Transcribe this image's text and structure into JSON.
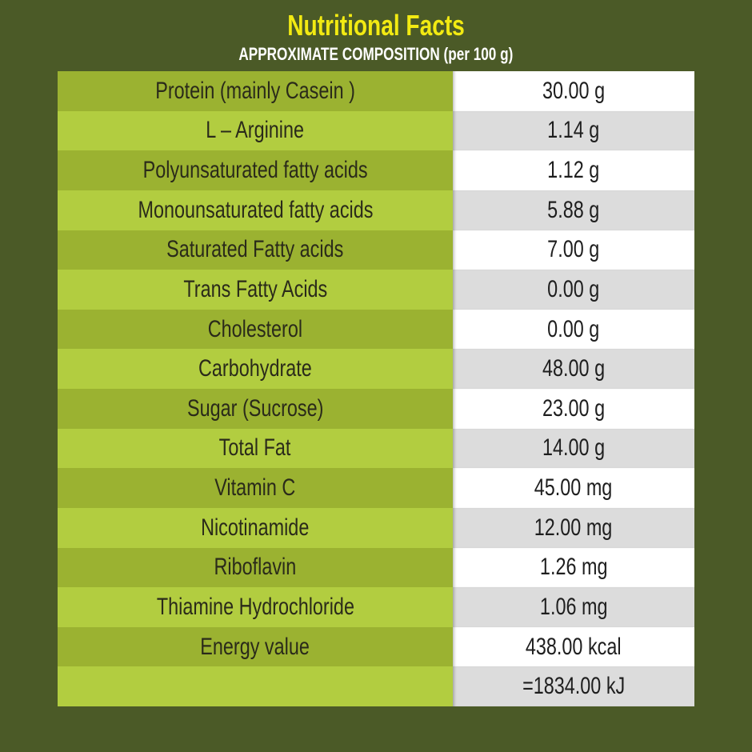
{
  "title": "Nutritional Facts",
  "subtitle": "APPROXIMATE COMPOSITION (per 100 g)",
  "colors": {
    "background": "#4b5a27",
    "title": "#f2ea12",
    "row_dark": "#9bb231",
    "row_light": "#b2cd40",
    "value_white": "#ffffff",
    "value_grey": "#dcdcdc"
  },
  "rows": [
    {
      "name": "Protein (mainly Casein )",
      "value": "30.00 g"
    },
    {
      "name": "L – Arginine",
      "value": "1.14 g"
    },
    {
      "name": "Polyunsaturated fatty acids",
      "value": "1.12 g"
    },
    {
      "name": "Monounsaturated fatty acids",
      "value": "5.88 g"
    },
    {
      "name": "Saturated Fatty acids",
      "value": "7.00 g"
    },
    {
      "name": "Trans Fatty Acids",
      "value": "0.00 g"
    },
    {
      "name": "Cholesterol",
      "value": "0.00 g"
    },
    {
      "name": "Carbohydrate",
      "value": "48.00 g"
    },
    {
      "name": "Sugar (Sucrose)",
      "value": "23.00 g"
    },
    {
      "name": "Total Fat",
      "value": "14.00 g"
    },
    {
      "name": "Vitamin C",
      "value": "45.00 mg"
    },
    {
      "name": "Nicotinamide",
      "value": "12.00 mg"
    },
    {
      "name": "Riboflavin",
      "value": "1.26 mg"
    },
    {
      "name": "Thiamine Hydrochloride",
      "value": "1.06 mg"
    },
    {
      "name": "Energy value",
      "value": "438.00 kcal"
    },
    {
      "name": "",
      "value": "=1834.00 kJ"
    }
  ]
}
